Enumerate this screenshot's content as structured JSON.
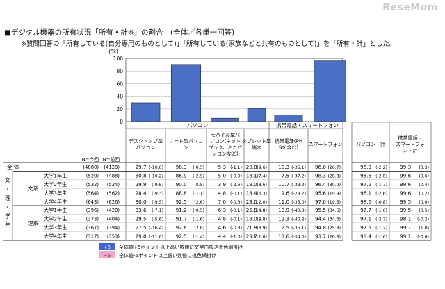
{
  "watermark": "ReseMom",
  "title": "■デジタル機器の所有状況「所有・計※」の割合　(全体／各単一回答)",
  "note": "※質問回答の「所有している(自分専用のものとして)」「所有している(家族などと共有のものとして)」を「所有・計」とした。",
  "chart_data": {
    "type": "bar",
    "unit": "(%)",
    "ylim": [
      0,
      100
    ],
    "yticks": [
      0,
      20,
      40,
      60,
      80,
      100
    ],
    "grid": true,
    "bar_color": "#4a6fc4",
    "categories": [
      "デスクトップ型パソコン",
      "ノート型パソコン",
      "モバイル型パソコン(ネットブック、ミニパソコンなど)",
      "タブレット型端末",
      "携帯電話(PHSを含む)",
      "スマートフォン"
    ],
    "values": [
      29.7,
      90.3,
      5.3,
      20.8,
      10.3,
      96.0
    ],
    "groups": [
      "パソコン",
      "携帯電話・スマートフォン"
    ]
  },
  "table": {
    "headers": [
      "デスクトップ型パソコン",
      "ノート型パソコン",
      "モバイル型パソコン(ネットブック、ミニパソコンなど)",
      "タブレット型端末",
      "携帯電話(PHSを含む)",
      "スマートフォン",
      "パソコン・計",
      "携帯電話・スマートフォン・計"
    ],
    "n_now": "N=今回",
    "n_prev": "N=前回",
    "side_label": "文・理・学年",
    "rows": [
      {
        "label": "全 体",
        "n": "(4000)",
        "n0": "(4120)",
        "cells": [
          [
            "29.7",
            "(-10.0)"
          ],
          [
            "90.3",
            "(-0.5)"
          ],
          [
            "5.3",
            "(-1.1)"
          ],
          [
            "20.8",
            "(9.6)"
          ],
          [
            "10.3",
            "(-35.1)"
          ],
          [
            "96.0",
            "(26.7)"
          ],
          [
            "96.9",
            "(-2.2)"
          ],
          [
            "99.3",
            "(0.3)"
          ]
        ]
      },
      {
        "group": "文系",
        "label": "大学1年生",
        "n": "(520)",
        "n0": "(488)",
        "cells": [
          [
            "30.8",
            "(-10.2)"
          ],
          [
            "86.9",
            "(-2.9)"
          ],
          [
            "5.0",
            "(-0.9)"
          ],
          [
            "18.1",
            "(7.4)"
          ],
          [
            "7.5",
            "(-37.2)"
          ],
          [
            "98.3",
            "(28.8)"
          ],
          [
            "95.6",
            "(-2.8)"
          ],
          [
            "99.6",
            "(0.6)"
          ]
        ]
      },
      {
        "label": "大学2年生",
        "n": "(532)",
        "n0": "(524)",
        "cells": [
          [
            "29.9",
            "(-9.6)"
          ],
          [
            "90.0",
            "(0.5)"
          ],
          [
            "3.9",
            "(-2.6)"
          ],
          [
            "19.0",
            "(8.6)"
          ],
          [
            "10.7",
            "(-33.2)"
          ],
          [
            "96.4",
            "(30.9)"
          ],
          [
            "97.2",
            "(-1.7)"
          ],
          [
            "99.6",
            "(0.4)"
          ]
        ]
      },
      {
        "label": "大学3年生",
        "n": "(564)",
        "n0": "(562)",
        "cells": [
          [
            "28.4",
            "(-9.3)"
          ],
          [
            "88.8",
            "(-1.1)"
          ],
          [
            "4.8",
            "(-0.1)"
          ],
          [
            "18.4",
            "(6.3)"
          ],
          [
            "9.6",
            "(-29.2)"
          ],
          [
            "95.6",
            "(19.9)"
          ],
          [
            "96.1",
            "(-2.6)"
          ],
          [
            "99.6",
            "(0.2)"
          ]
        ]
      },
      {
        "label": "大学4年生",
        "n": "(643)",
        "n0": "(626)",
        "cells": [
          [
            "30.0",
            "(-9.5)"
          ],
          [
            "92.5",
            "(2.6)"
          ],
          [
            "7.0",
            "(-0.3)"
          ],
          [
            "23.0",
            "(12.0)"
          ],
          [
            "11.0",
            "(-35.0)"
          ],
          [
            "97.0",
            "(19.5)"
          ],
          [
            "98.6",
            "(-0.8)"
          ],
          [
            "99.5",
            "(0.0)"
          ]
        ]
      },
      {
        "group": "理系",
        "label": "大学1年生",
        "n": "(396)",
        "n0": "(420)",
        "cells": [
          [
            "33.6",
            "(-7.1)"
          ],
          [
            "91.2",
            "(-0.5)"
          ],
          [
            "6.3",
            "(-0.1)"
          ],
          [
            "25.8",
            "(14.8)"
          ],
          [
            "10.9",
            "(-40.3)"
          ],
          [
            "95.5",
            "(34.6)"
          ],
          [
            "97.7",
            "(-1.6)"
          ],
          [
            "99.5",
            "(0.5)"
          ]
        ]
      },
      {
        "label": "大学2年生",
        "n": "(373)",
        "n0": "(404)",
        "cells": [
          [
            "29.5",
            "(-5.6)"
          ],
          [
            "91.7",
            "(-1.6)"
          ],
          [
            "4.8",
            "(-0.1)"
          ],
          [
            "18.0",
            "(8.8)"
          ],
          [
            "12.3",
            "(-40.2)"
          ],
          [
            "94.4",
            "(34.3)"
          ],
          [
            "97.1",
            "(-2.7)"
          ],
          [
            "98.1",
            "(-0.2)"
          ]
        ]
      },
      {
        "label": "大学3年生",
        "n": "(367)",
        "n0": "(394)",
        "cells": [
          [
            "27.5",
            "(-16.4)"
          ],
          [
            "92.6",
            "(2.8)"
          ],
          [
            "4.6",
            "(-0.3)"
          ],
          [
            "21.8",
            "(8.9)"
          ],
          [
            "12.5",
            "(-35.1)"
          ],
          [
            "94.8",
            "(25.8)"
          ],
          [
            "97.5",
            "(-1.2)"
          ],
          [
            "99.7",
            "(1.0)"
          ]
        ]
      },
      {
        "label": "大学4年生",
        "n": "(317)",
        "n0": "(353)",
        "cells": [
          [
            "29.0",
            "(-11.6)"
          ],
          [
            "92.5",
            "(-1.4)"
          ],
          [
            "4.4",
            "(-1.0)"
          ],
          [
            "23.7",
            "(11.6)"
          ],
          [
            "13.6",
            "(-34.0)"
          ],
          [
            "93.7",
            "(26.8)"
          ],
          [
            "98.4",
            "(-1.6)"
          ],
          [
            "99.1",
            "(-0.6)"
          ]
        ]
      }
    ]
  },
  "legend": [
    {
      "mark": "+5",
      "text": "全体値+5ポイント以上高い数値に文字白抜き青色網掛け",
      "color": "#3b64d8"
    },
    {
      "mark": "−5",
      "text": "全体値-5ポイント以上低い数値に桃色網掛け",
      "color": "#f2a6c8"
    }
  ]
}
